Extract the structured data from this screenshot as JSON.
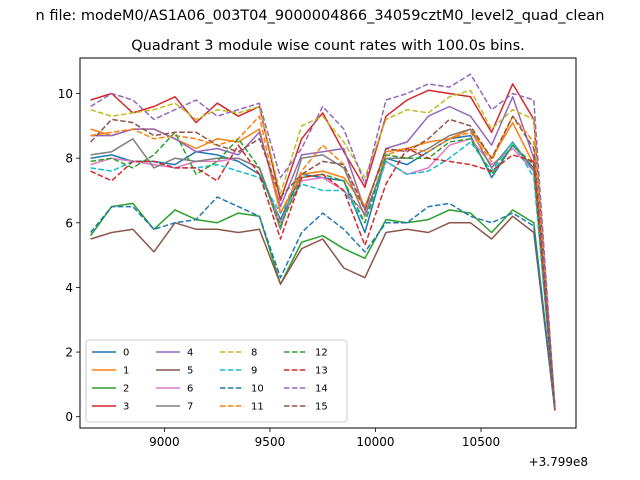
{
  "figure": {
    "suptitle": "n file: modeM0/AS1A06_003T04_9000004866_34059cztM0_level2_quad_clean",
    "offset_label": "+3.799e8"
  },
  "chart_data": {
    "type": "line",
    "title": "Quadrant 3 module wise count rates with 100.0s bins.",
    "xlabel": "",
    "ylabel": "",
    "x_offset": 379900000,
    "xlim": [
      8600,
      10950
    ],
    "ylim": [
      -0.35,
      11.1
    ],
    "xticks": [
      9000,
      9500,
      10000,
      10500
    ],
    "xtick_labels": [
      "9000",
      "9500",
      "10000",
      "10500"
    ],
    "yticks": [
      0,
      2,
      4,
      6,
      8,
      10
    ],
    "ytick_labels": [
      "0",
      "2",
      "4",
      "6",
      "8",
      "10"
    ],
    "grid": false,
    "legend_position": "lower-left",
    "x": [
      8650,
      8750,
      8850,
      8950,
      9050,
      9150,
      9250,
      9350,
      9450,
      9550,
      9650,
      9750,
      9850,
      9950,
      10050,
      10150,
      10250,
      10350,
      10450,
      10550,
      10650,
      10750,
      10850
    ],
    "series": [
      {
        "name": "0",
        "color": "#1f77b4",
        "dash": "solid",
        "values": [
          8.0,
          8.1,
          7.9,
          7.9,
          7.8,
          8.2,
          8.1,
          7.9,
          7.5,
          6.1,
          7.5,
          7.4,
          7.3,
          5.7,
          8.0,
          7.8,
          8.2,
          8.6,
          8.7,
          7.4,
          8.4,
          7.7,
          0.2
        ]
      },
      {
        "name": "1",
        "color": "#ff7f0e",
        "dash": "solid",
        "values": [
          8.9,
          8.7,
          8.9,
          8.9,
          8.6,
          8.3,
          8.6,
          8.5,
          8.9,
          6.3,
          7.5,
          7.6,
          7.4,
          6.5,
          8.2,
          8.3,
          8.5,
          8.6,
          8.9,
          8.0,
          9.1,
          7.8,
          0.3
        ]
      },
      {
        "name": "2",
        "color": "#2ca02c",
        "dash": "solid",
        "values": [
          5.6,
          6.5,
          6.6,
          5.8,
          6.4,
          6.1,
          6.0,
          6.3,
          6.2,
          4.1,
          5.4,
          5.6,
          5.2,
          4.9,
          6.1,
          6.0,
          6.1,
          6.4,
          6.3,
          5.7,
          6.4,
          6.0,
          0.2
        ]
      },
      {
        "name": "3",
        "color": "#d62728",
        "dash": "solid",
        "values": [
          9.8,
          10.0,
          9.4,
          9.6,
          9.9,
          9.1,
          9.7,
          9.3,
          9.6,
          6.7,
          8.6,
          9.4,
          8.2,
          7.1,
          9.3,
          9.8,
          10.1,
          10.0,
          9.9,
          8.8,
          10.3,
          9.2,
          0.3
        ]
      },
      {
        "name": "4",
        "color": "#9467bd",
        "dash": "solid",
        "values": [
          8.7,
          8.7,
          8.9,
          8.9,
          8.6,
          8.2,
          8.3,
          8.1,
          8.8,
          6.5,
          8.1,
          8.2,
          8.3,
          6.4,
          8.3,
          8.5,
          9.3,
          9.6,
          9.3,
          8.4,
          9.9,
          8.0,
          0.3
        ]
      },
      {
        "name": "5",
        "color": "#8c564b",
        "dash": "solid",
        "values": [
          5.5,
          5.7,
          5.8,
          5.1,
          6.0,
          5.8,
          5.8,
          5.7,
          5.8,
          4.1,
          5.2,
          5.5,
          4.6,
          4.3,
          5.7,
          5.8,
          5.7,
          6.0,
          6.0,
          5.5,
          6.2,
          5.7,
          0.2
        ]
      },
      {
        "name": "6",
        "color": "#e377c2",
        "dash": "solid",
        "values": [
          7.8,
          8.0,
          7.9,
          7.8,
          7.7,
          7.9,
          7.9,
          8.0,
          7.7,
          6.0,
          7.3,
          7.4,
          7.0,
          6.3,
          7.9,
          7.5,
          7.7,
          8.4,
          8.6,
          7.8,
          8.3,
          7.6,
          0.2
        ]
      },
      {
        "name": "7",
        "color": "#7f7f7f",
        "dash": "solid",
        "values": [
          8.1,
          8.2,
          8.6,
          7.7,
          8.0,
          7.9,
          8.0,
          8.0,
          7.7,
          5.8,
          8.0,
          8.1,
          7.7,
          6.2,
          8.0,
          8.0,
          8.3,
          8.7,
          8.9,
          7.7,
          8.5,
          7.6,
          0.2
        ]
      },
      {
        "name": "8",
        "color": "#bcbd22",
        "dash": "dashed",
        "values": [
          9.5,
          9.3,
          9.4,
          9.5,
          9.7,
          9.2,
          9.5,
          9.4,
          9.6,
          6.9,
          9.0,
          9.3,
          8.5,
          7.4,
          9.2,
          9.5,
          9.4,
          9.9,
          10.1,
          8.9,
          9.5,
          9.2,
          0.3
        ]
      },
      {
        "name": "9",
        "color": "#17becf",
        "dash": "dashed",
        "values": [
          7.7,
          7.6,
          7.9,
          7.9,
          7.7,
          7.7,
          7.8,
          7.6,
          7.4,
          6.3,
          7.2,
          7.0,
          7.0,
          6.0,
          7.9,
          7.5,
          7.6,
          8.0,
          8.5,
          7.6,
          8.5,
          7.4,
          0.2
        ]
      },
      {
        "name": "10",
        "color": "#1f77b4",
        "dash": "dashed",
        "values": [
          5.7,
          6.5,
          6.5,
          5.8,
          6.0,
          6.1,
          6.8,
          6.5,
          6.2,
          4.3,
          5.7,
          6.3,
          5.8,
          5.1,
          6.0,
          6.0,
          6.5,
          6.6,
          6.2,
          6.0,
          6.3,
          5.9,
          0.2
        ]
      },
      {
        "name": "11",
        "color": "#ff7f0e",
        "dash": "dashed",
        "values": [
          8.7,
          8.8,
          8.9,
          8.6,
          8.7,
          8.6,
          8.4,
          8.6,
          9.3,
          6.3,
          7.6,
          8.4,
          7.8,
          6.5,
          8.1,
          8.3,
          8.2,
          8.6,
          8.8,
          7.9,
          9.3,
          8.5,
          0.3
        ]
      },
      {
        "name": "12",
        "color": "#2ca02c",
        "dash": "dashed",
        "values": [
          7.9,
          8.0,
          7.7,
          8.1,
          8.8,
          7.5,
          7.9,
          8.6,
          7.7,
          5.9,
          7.4,
          7.5,
          7.3,
          6.0,
          8.1,
          8.0,
          8.0,
          8.5,
          8.6,
          7.5,
          8.4,
          7.8,
          0.2
        ]
      },
      {
        "name": "13",
        "color": "#d62728",
        "dash": "dashed",
        "values": [
          7.6,
          7.3,
          7.9,
          7.9,
          7.7,
          7.7,
          7.3,
          8.4,
          7.5,
          5.5,
          7.4,
          7.5,
          7.0,
          5.3,
          7.2,
          8.3,
          8.0,
          7.9,
          7.8,
          7.6,
          8.1,
          7.9,
          0.2
        ]
      },
      {
        "name": "14",
        "color": "#9467bd",
        "dash": "dashed",
        "values": [
          9.6,
          10.0,
          9.8,
          9.2,
          9.5,
          9.8,
          9.3,
          9.5,
          9.7,
          7.4,
          8.3,
          9.6,
          8.9,
          7.2,
          9.8,
          10.0,
          10.3,
          10.2,
          10.6,
          9.5,
          10.0,
          9.8,
          0.3
        ]
      },
      {
        "name": "15",
        "color": "#8c564b",
        "dash": "dashed",
        "values": [
          8.5,
          9.2,
          9.1,
          8.7,
          8.8,
          8.8,
          8.4,
          8.2,
          8.6,
          6.8,
          7.5,
          7.9,
          7.8,
          6.4,
          8.3,
          8.2,
          8.6,
          9.2,
          9.0,
          8.0,
          9.3,
          8.3,
          0.3
        ]
      }
    ]
  }
}
